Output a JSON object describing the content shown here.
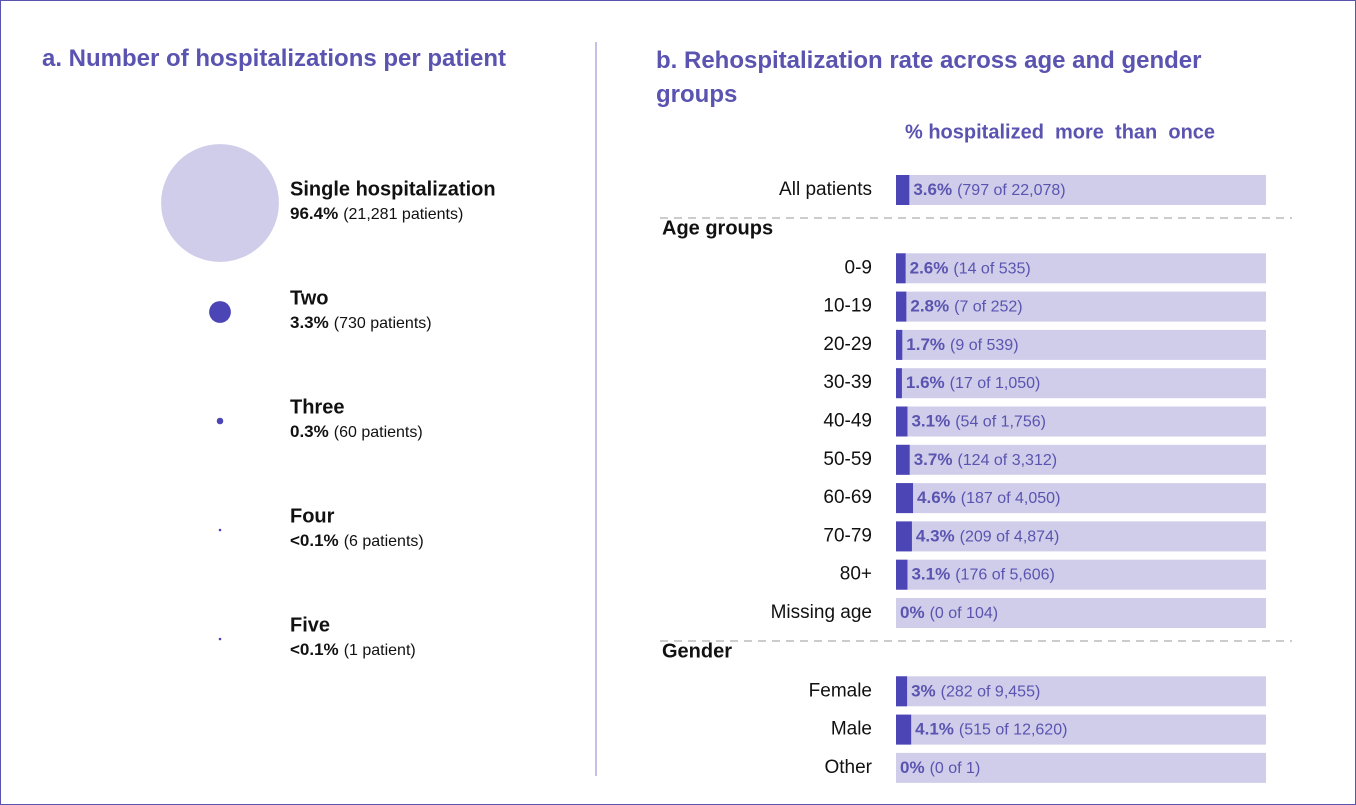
{
  "chart_data": [
    {
      "type": "bubble",
      "title": "a. Number of hospitalizations per patient",
      "categories": [
        "Single hospitalization",
        "Two",
        "Three",
        "Four",
        "Five"
      ],
      "values": [
        96.4,
        3.3,
        0.3,
        0.027,
        0.0045
      ],
      "value_labels": [
        "96.4%",
        "3.3%",
        "0.3%",
        "<0.1%",
        "<0.1%"
      ],
      "notes": [
        "(21,281 patients)",
        "(730 patients)",
        "(60 patients)",
        "(6 patients)",
        "(1 patient)"
      ],
      "colors": [
        "#cfcdea",
        "#4b45b5",
        "#4b45b5",
        "#4b45b5",
        "#4b45b5"
      ]
    },
    {
      "type": "bar",
      "title": "b. Rehospitalization rate across age and gender groups",
      "x_label": "% hospitalized  more  than  once",
      "xlim": [
        0,
        100
      ],
      "color": "#4b45b5",
      "track_color": "#cfcdea",
      "sections": [
        {
          "categories": [
            "All patients"
          ],
          "values": [
            3.6
          ],
          "value_labels": [
            "3.6%"
          ],
          "notes": [
            "(797 of 22,078)"
          ]
        },
        {
          "name": "Age groups",
          "categories": [
            "0-9",
            "10-19",
            "20-29",
            "30-39",
            "40-49",
            "50-59",
            "60-69",
            "70-79",
            "80+",
            "Missing age"
          ],
          "values": [
            2.6,
            2.8,
            1.7,
            1.6,
            3.1,
            3.7,
            4.6,
            4.3,
            3.1,
            0
          ],
          "value_labels": [
            "2.6%",
            "2.8%",
            "1.7%",
            "1.6%",
            "3.1%",
            "3.7%",
            "4.6%",
            "4.3%",
            "3.1%",
            "0%"
          ],
          "notes": [
            "(14 of 535)",
            "(7 of 252)",
            "(9 of 539)",
            "(17 of 1,050)",
            "(54 of 1,756)",
            "(124 of 3,312)",
            "(187 of 4,050)",
            "(209 of 4,874)",
            "(176 of 5,606)",
            "(0 of 104)"
          ]
        },
        {
          "name": "Gender",
          "categories": [
            "Female",
            "Male",
            "Other"
          ],
          "values": [
            3,
            4.1,
            0
          ],
          "value_labels": [
            "3%",
            "4.1%",
            "0%"
          ],
          "notes": [
            "(282 of 9,455)",
            "(515 of 12,620)",
            "(0 of 1)"
          ]
        }
      ]
    }
  ]
}
